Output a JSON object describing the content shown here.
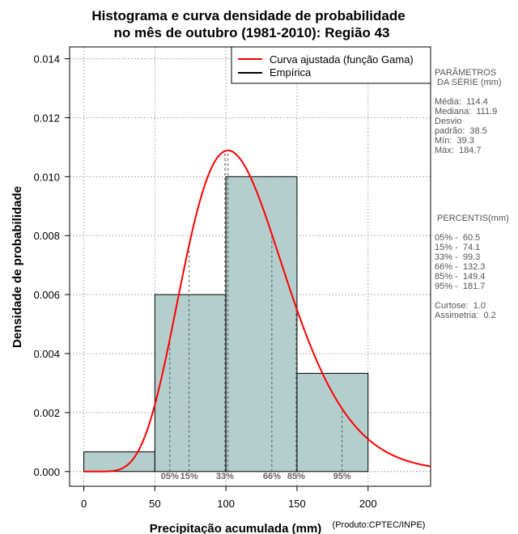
{
  "chart_data": {
    "type": "bar",
    "title_line1": "Histograma e curva densidade de probabilidade",
    "title_line2": "no mês de outubro (1981-2010): Região 43",
    "xlabel": "Precipitação acumulada (mm)",
    "ylabel": "Densidade de probabilidade",
    "credit": "(Produto:CPTEC/INPE)",
    "xlim": [
      -10,
      244
    ],
    "ylim": [
      -0.0005,
      0.0144
    ],
    "grid": true,
    "xticks": [
      0,
      50,
      100,
      150,
      200
    ],
    "xtick_labels": [
      "0",
      "50",
      "100",
      "150",
      "200"
    ],
    "yticks": [
      0,
      0.002,
      0.004,
      0.006,
      0.008,
      0.01,
      0.012,
      0.014
    ],
    "ytick_labels": [
      "0.000",
      "0.002",
      "0.004",
      "0.006",
      "0.008",
      "0.010",
      "0.012",
      "0.014"
    ],
    "bins": [
      {
        "start": 0,
        "end": 50,
        "density": 0.00067
      },
      {
        "start": 50,
        "end": 100,
        "density": 0.006
      },
      {
        "start": 100,
        "end": 150,
        "density": 0.01
      },
      {
        "start": 150,
        "end": 200,
        "density": 0.00333
      }
    ],
    "bar_color": "#b4cdcd",
    "curve_color": "#ff0000",
    "curve": {
      "name": "Curva ajustada (função Gama)",
      "distribution": "gamma",
      "mean": 114.4,
      "sd": 38.5,
      "x_range": [
        0,
        244
      ]
    },
    "percentiles": [
      {
        "label": "05%",
        "value": 60.5
      },
      {
        "label": "15%",
        "value": 74.1
      },
      {
        "label": "33%",
        "value": 99.3
      },
      {
        "label": "66%",
        "value": 132.3
      },
      {
        "label": "85%",
        "value": 149.4
      },
      {
        "label": "95%",
        "value": 181.7
      }
    ],
    "legend": {
      "position": "top-right",
      "entries": [
        {
          "label": "Curva ajustada (função Gama)",
          "color": "#ff0000"
        },
        {
          "label": "Empírica",
          "color": "#000000"
        }
      ]
    }
  },
  "side_panel": {
    "params_title_1": "PARÂMETROS",
    "params_title_2": " DA SÉRIE (mm)",
    "media": "Média:  114.4",
    "mediana": "Mediana:  111.9",
    "desvio_1": "Desvio",
    "desvio_2": "padrão:  38.5",
    "min": "Mín:  39.3",
    "max": "Máx:  184.7",
    "percentis_title": " PERCENTIS(mm)",
    "p05": "05% -  60.5",
    "p15": "15% -  74.1",
    "p33": "33% -  99.3",
    "p66": "66% -  132.3",
    "p85": "85% -  149.4",
    "p95": "95% -  181.7",
    "curtose": "Curtose:  1.0",
    "assimetria": "Assimetria:  0.2"
  }
}
